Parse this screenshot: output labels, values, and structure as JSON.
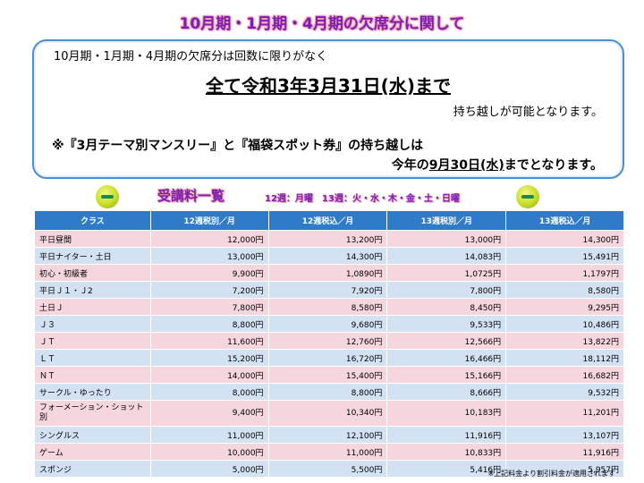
{
  "title": "10月期・1月期・4月期の欠席分に関して",
  "notice": {
    "line1": "10月期・1月期・4月期の欠席分は回数に限りがなく",
    "line2": "全て令和3年3月31日(水)まで",
    "line3": "持ち越しが可能となります。",
    "line4": "※『3月テーマ別マンスリー』と『福袋スポット券』の持ち越しは",
    "line5_prefix": "今年の",
    "line5_date": "9月30日(水)",
    "line5_suffix": "までとなります。"
  },
  "fees": {
    "title": "受講料一覧",
    "subtitle": "12週：月曜　13週：火・水・木・金・土・日曜"
  },
  "table": {
    "headers": [
      "クラス",
      "12週税別／月",
      "12週税込／月",
      "13週税別／月",
      "13週税込／月"
    ],
    "rows": [
      [
        "平日昼間",
        "12,000円",
        "13,200円",
        "13,000円",
        "14,300円"
      ],
      [
        "平日ナイター・土日",
        "13,000円",
        "14,300円",
        "14,083円",
        "15,491円"
      ],
      [
        "初心・初級者",
        "9,900円",
        "1,0890円",
        "1,0725円",
        "1,1797円"
      ],
      [
        "平日Ｊ１・Ｊ2",
        "7,200円",
        "7,920円",
        "7,800円",
        "8,580円"
      ],
      [
        "土日Ｊ",
        "7,800円",
        "8,580円",
        "8,450円",
        "9,295円"
      ],
      [
        "Ｊ３",
        "8,800円",
        "9,680円",
        "9,533円",
        "10,486円"
      ],
      [
        "ＪＴ",
        "11,600円",
        "12,760円",
        "12,566円",
        "13,822円"
      ],
      [
        "ＬＴ",
        "15,200円",
        "16,720円",
        "16,466円",
        "18,112円"
      ],
      [
        "ＮＴ",
        "14,000円",
        "15,400円",
        "15,166円",
        "16,682円"
      ],
      [
        "サークル・ゆったり",
        "8,000円",
        "8,800円",
        "8,666円",
        "9,532円"
      ],
      [
        "フォーメーション・ショット別",
        "9,400円",
        "10,340円",
        "10,183円",
        "11,201円"
      ],
      [
        "シングルス",
        "11,000円",
        "12,100円",
        "11,916円",
        "13,107円"
      ],
      [
        "ゲーム",
        "10,000円",
        "11,000円",
        "10,833円",
        "11,916円"
      ],
      [
        "スポンジ",
        "5,000円",
        "5,500円",
        "5,416円",
        "5,957円"
      ]
    ]
  },
  "footnote": "※上記料金より割引料金が適用されます"
}
